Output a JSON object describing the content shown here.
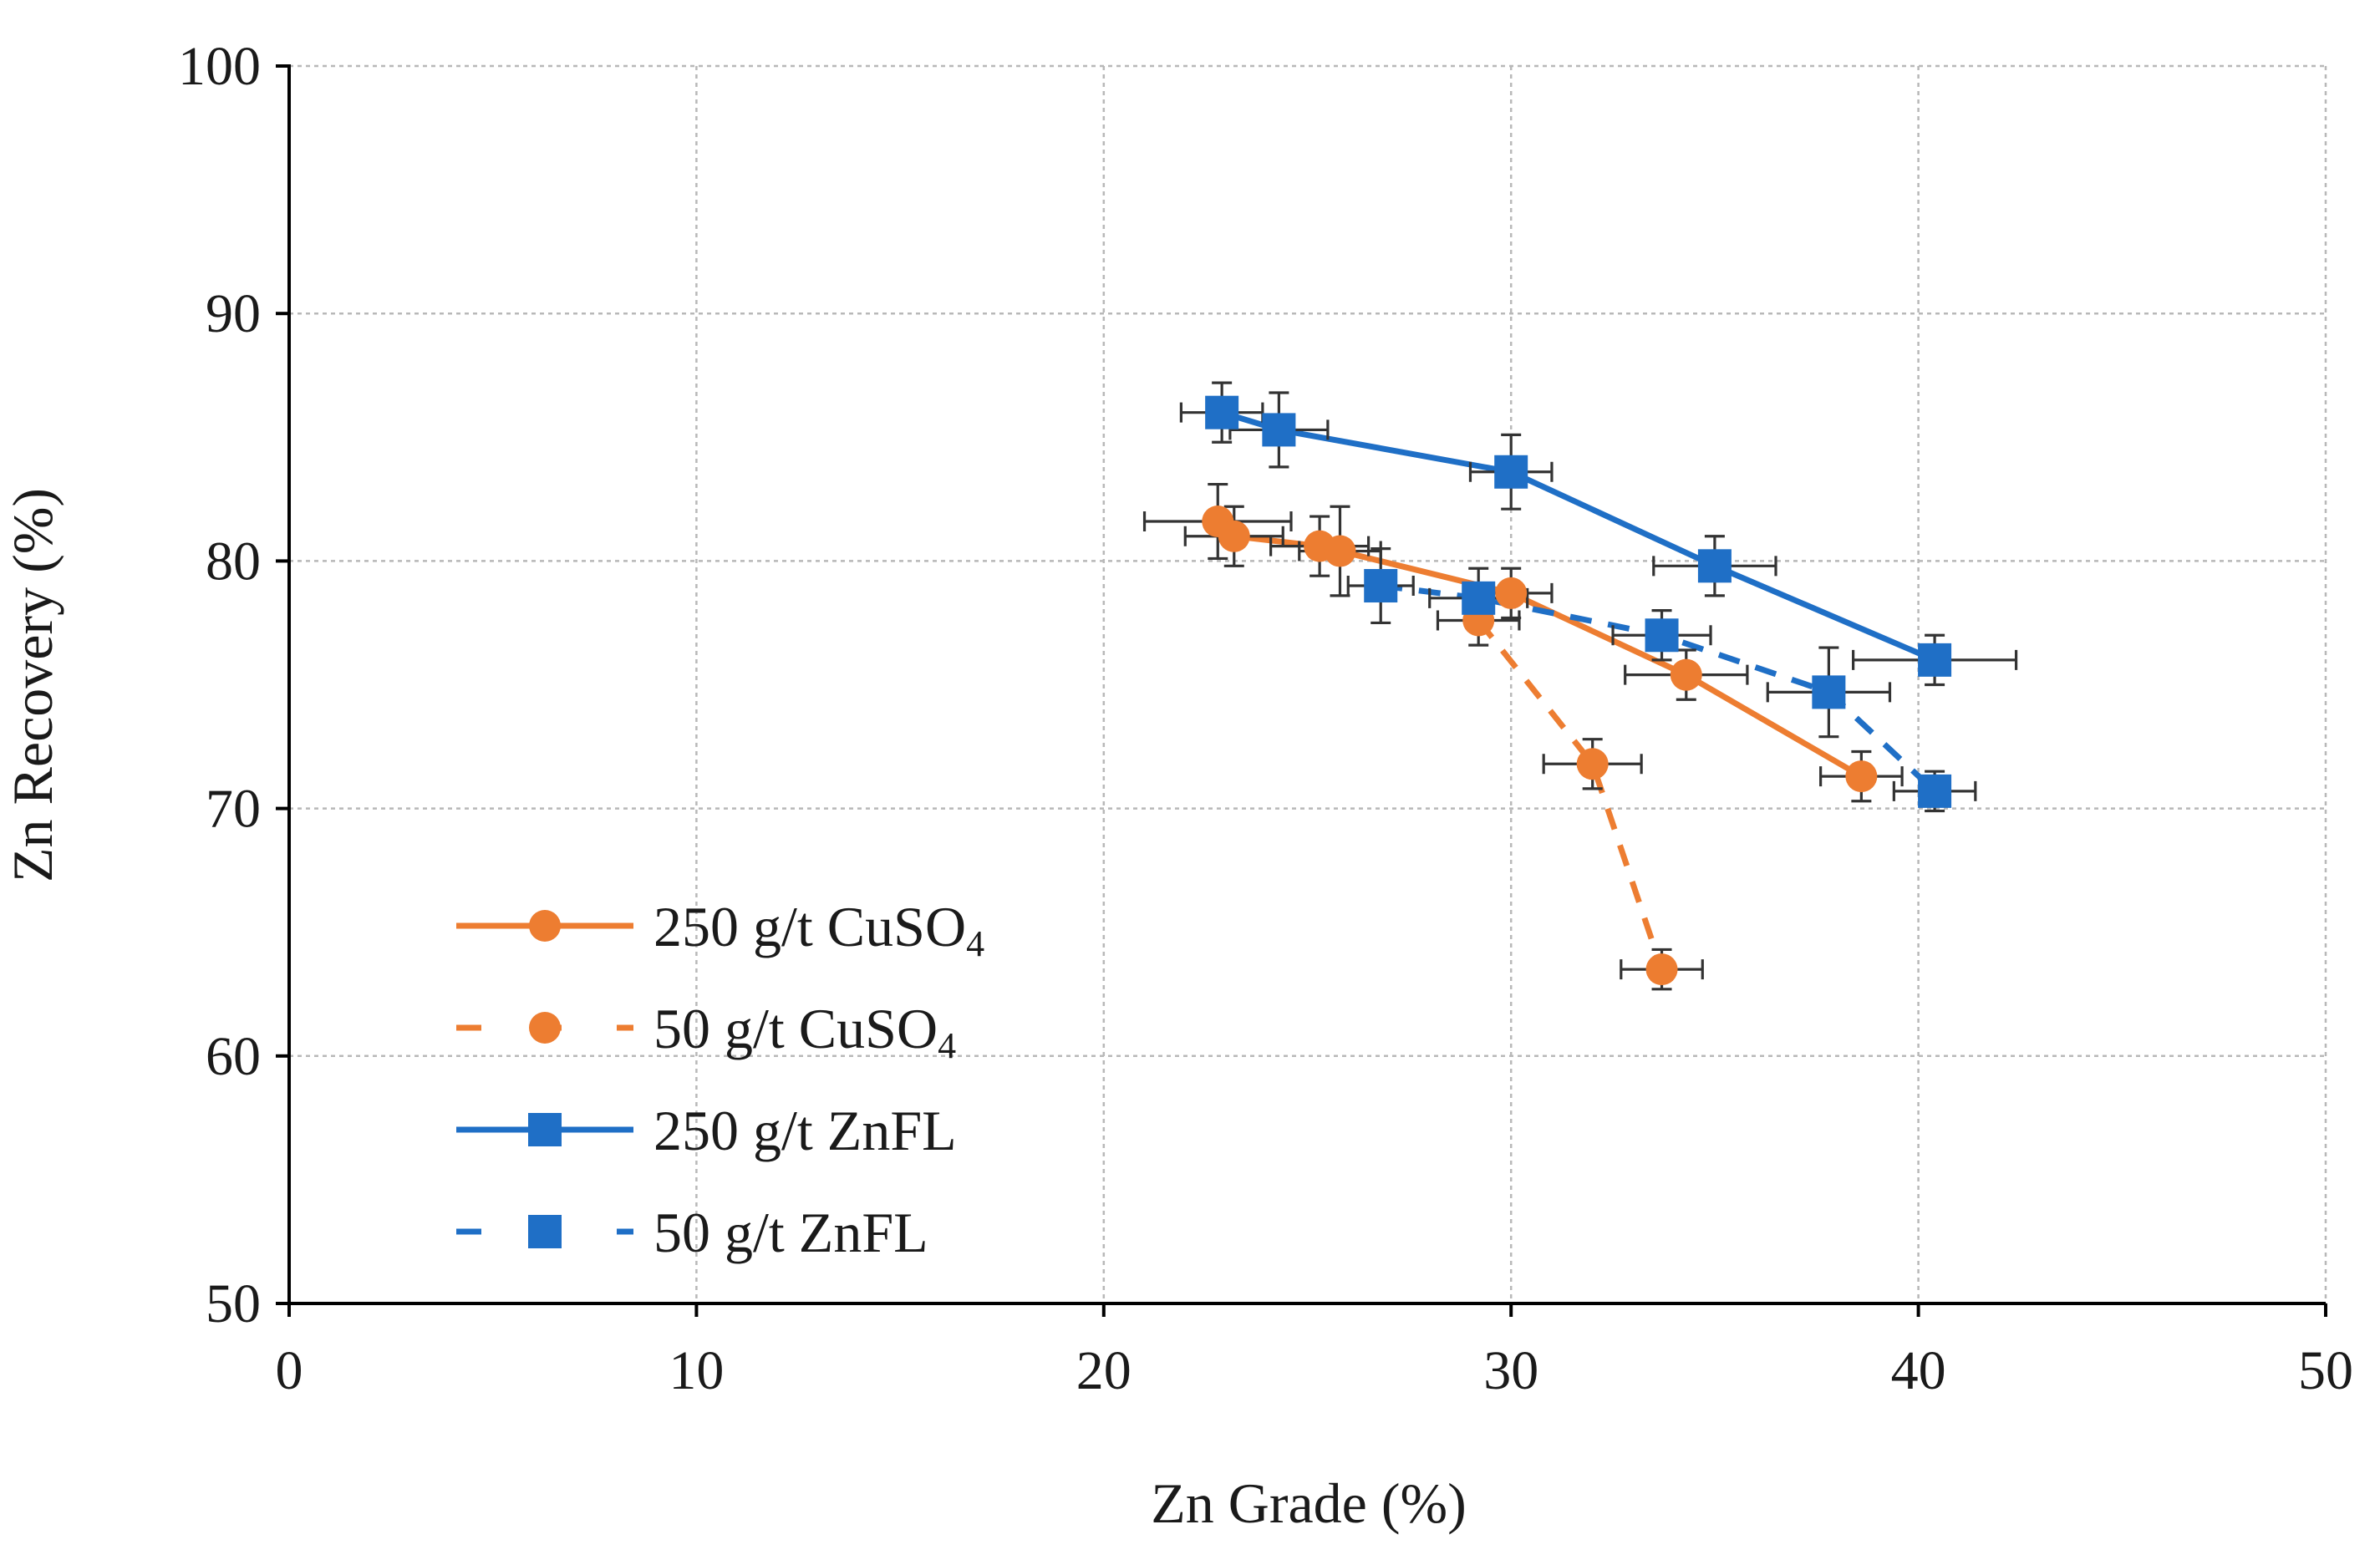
{
  "chart_data": {
    "type": "scatter",
    "title": "",
    "xlabel": "Zn Grade (%)",
    "ylabel": "Zn Recovery (%)",
    "xlim": [
      0,
      50
    ],
    "ylim": [
      50,
      100
    ],
    "xticks": [
      0,
      10,
      20,
      30,
      40,
      50
    ],
    "yticks": [
      50,
      60,
      70,
      80,
      90,
      100
    ],
    "grid": true,
    "legend_position": "bottom-left",
    "series": [
      {
        "name": "250 g/t CuSO",
        "subscript": "4",
        "color": "#ED7D31",
        "marker": "circle",
        "line": "solid",
        "x": [
          22.8,
          23.2,
          25.3,
          25.8,
          30.0,
          34.3,
          38.6
        ],
        "y": [
          81.6,
          81.0,
          80.6,
          80.4,
          78.7,
          75.4,
          71.3
        ],
        "x_err": [
          1.8,
          1.2,
          1.2,
          1.0,
          1.0,
          1.5,
          1.0
        ],
        "y_err": [
          1.5,
          1.2,
          1.2,
          1.8,
          1.0,
          1.0,
          1.0
        ]
      },
      {
        "name": "50 g/t CuSO",
        "subscript": "4",
        "color": "#ED7D31",
        "marker": "circle",
        "line": "dashed",
        "x": [
          29.2,
          32.0,
          33.7
        ],
        "y": [
          77.6,
          71.8,
          63.5
        ],
        "x_err": [
          1.0,
          1.2,
          1.0
        ],
        "y_err": [
          1.0,
          1.0,
          0.8
        ]
      },
      {
        "name": "250 g/t ZnFL",
        "subscript": "",
        "color": "#1F6FC6",
        "marker": "square",
        "line": "solid",
        "x": [
          22.9,
          24.3,
          30.0,
          35.0,
          40.4
        ],
        "y": [
          86.0,
          85.3,
          83.6,
          79.8,
          76.0
        ],
        "x_err": [
          1.0,
          1.2,
          1.0,
          1.5,
          2.0
        ],
        "y_err": [
          1.2,
          1.5,
          1.5,
          1.2,
          1.0
        ]
      },
      {
        "name": "50 g/t ZnFL",
        "subscript": "",
        "color": "#1F6FC6",
        "marker": "square",
        "line": "dashed",
        "x": [
          26.8,
          29.2,
          33.7,
          37.8,
          40.4
        ],
        "y": [
          79.0,
          78.5,
          77.0,
          74.7,
          70.7
        ],
        "x_err": [
          0.8,
          1.2,
          1.2,
          1.5,
          1.0
        ],
        "y_err": [
          1.5,
          1.2,
          1.0,
          1.8,
          0.8
        ]
      }
    ]
  }
}
